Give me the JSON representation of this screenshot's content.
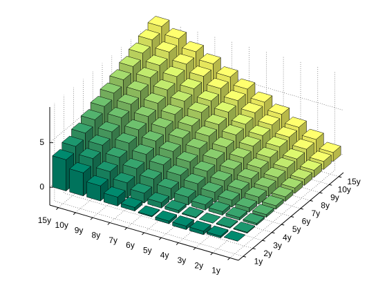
{
  "chart_data": {
    "type": "bar3",
    "x_categories": [
      "15y",
      "10y",
      "9y",
      "8y",
      "7y",
      "6y",
      "5y",
      "4y",
      "3y",
      "2y",
      "1y"
    ],
    "y_categories": [
      "1y",
      "2y",
      "3y",
      "4y",
      "5y",
      "6y",
      "7y",
      "8y",
      "9y",
      "10y",
      "15y"
    ],
    "series": [
      {
        "color": "#008066",
        "values": [
          3.5,
          2.6,
          1.7,
          1.0,
          0.4,
          -0.1,
          -0.3,
          -0.4,
          -0.4,
          -0.2,
          0.0
        ]
      },
      {
        "color": "#1a8c66",
        "values": [
          4.1,
          3.3,
          2.4,
          1.7,
          1.1,
          0.6,
          0.3,
          0.1,
          0.0,
          0.1,
          0.1
        ]
      },
      {
        "color": "#339966",
        "values": [
          4.7,
          3.9,
          3.1,
          2.4,
          1.8,
          1.3,
          0.9,
          0.6,
          0.4,
          0.3,
          0.2
        ]
      },
      {
        "color": "#4da666",
        "values": [
          5.3,
          4.5,
          3.8,
          3.1,
          2.5,
          1.9,
          1.5,
          1.1,
          0.8,
          0.5,
          0.3
        ]
      },
      {
        "color": "#66b366",
        "values": [
          5.9,
          5.2,
          4.4,
          3.7,
          3.1,
          2.5,
          2.0,
          1.5,
          1.1,
          0.8,
          0.4
        ]
      },
      {
        "color": "#80bf66",
        "values": [
          6.5,
          5.8,
          5.0,
          4.3,
          3.7,
          3.1,
          2.5,
          1.9,
          1.4,
          1.0,
          0.5
        ]
      },
      {
        "color": "#99cc66",
        "values": [
          7.1,
          6.4,
          5.6,
          4.9,
          4.2,
          3.6,
          2.9,
          2.3,
          1.7,
          1.2,
          0.6
        ]
      },
      {
        "color": "#b3d966",
        "values": [
          7.7,
          7.0,
          6.2,
          5.5,
          4.8,
          4.0,
          3.4,
          2.7,
          2.0,
          1.4,
          0.7
        ]
      },
      {
        "color": "#cce666",
        "values": [
          8.3,
          7.5,
          6.8,
          6.0,
          5.2,
          4.5,
          3.7,
          3.0,
          2.3,
          1.5,
          0.8
        ]
      },
      {
        "color": "#e6f266",
        "values": [
          8.9,
          8.1,
          7.3,
          6.5,
          5.7,
          4.9,
          4.1,
          3.3,
          2.5,
          1.7,
          0.9
        ]
      },
      {
        "color": "#ffff66",
        "values": [
          9.5,
          8.7,
          7.8,
          7.0,
          6.1,
          5.3,
          4.4,
          3.6,
          2.7,
          1.9,
          1.0
        ]
      }
    ],
    "zlim": [
      -2,
      9
    ],
    "zticks": [
      0,
      5
    ],
    "grid": true
  }
}
